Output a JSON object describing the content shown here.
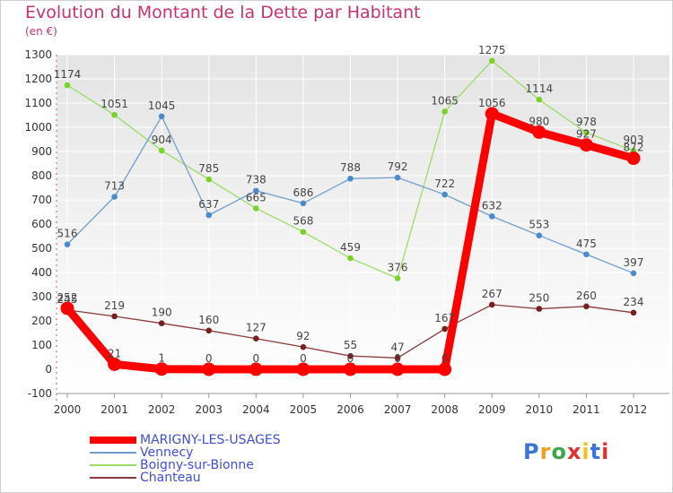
{
  "title": "Evolution du Montant de la Dette par Habitant",
  "subtitle": "(en €)",
  "logo_text": "Proxiti",
  "chart_data": {
    "type": "line",
    "title": "Evolution du Montant de la Dette par Habitant",
    "subtitle": "(en €)",
    "xlabel": "",
    "ylabel": "",
    "categories": [
      "2000",
      "2001",
      "2002",
      "2003",
      "2004",
      "2005",
      "2006",
      "2007",
      "2008",
      "2009",
      "2010",
      "2011",
      "2012"
    ],
    "ylim": [
      -100,
      1300
    ],
    "yticks": [
      -100,
      0,
      100,
      200,
      300,
      400,
      500,
      600,
      700,
      800,
      900,
      1000,
      1100,
      1200,
      1300
    ],
    "grid": true,
    "legend_position": "bottom-left",
    "series": [
      {
        "name": "MARIGNY-LES-USAGES",
        "color": "#ff0000",
        "marker_color": "#ff0000",
        "emphasis": "thick",
        "values": [
          252,
          21,
          1,
          0,
          0,
          0,
          0,
          0,
          0,
          1056,
          980,
          927,
          872
        ],
        "labels": [
          "252",
          "21",
          "1",
          "0",
          "0",
          "0",
          "0",
          "0",
          "0",
          "1056",
          "980",
          "927",
          "872"
        ]
      },
      {
        "name": "Vennecy",
        "color": "#6f9ed0",
        "marker_color": "#4a8bd0",
        "values": [
          516,
          713,
          1045,
          637,
          738,
          686,
          788,
          792,
          722,
          632,
          553,
          475,
          397
        ],
        "labels": [
          "516",
          "713",
          "1045",
          "637",
          "738",
          "686",
          "788",
          "792",
          "722",
          "632",
          "553",
          "475",
          "397"
        ]
      },
      {
        "name": "Boigny-sur-Bionne",
        "color": "#99dd66",
        "marker_color": "#7cd02a",
        "values": [
          1174,
          1051,
          904,
          785,
          665,
          568,
          459,
          376,
          1065,
          1275,
          1114,
          978,
          903
        ],
        "labels": [
          "1174",
          "1051",
          "904",
          "785",
          "665",
          "568",
          "459",
          "376",
          "1065",
          "1275",
          "1114",
          "978",
          "903"
        ]
      },
      {
        "name": "Chanteau",
        "color": "#8b3a3a",
        "marker_color": "#7a1f1f",
        "values": [
          245,
          219,
          190,
          160,
          127,
          92,
          55,
          47,
          167,
          267,
          250,
          260,
          234
        ],
        "labels": [
          "245",
          "219",
          "190",
          "160",
          "127",
          "92",
          "55",
          "47",
          "167",
          "267",
          "250",
          "260",
          "234"
        ]
      }
    ]
  }
}
